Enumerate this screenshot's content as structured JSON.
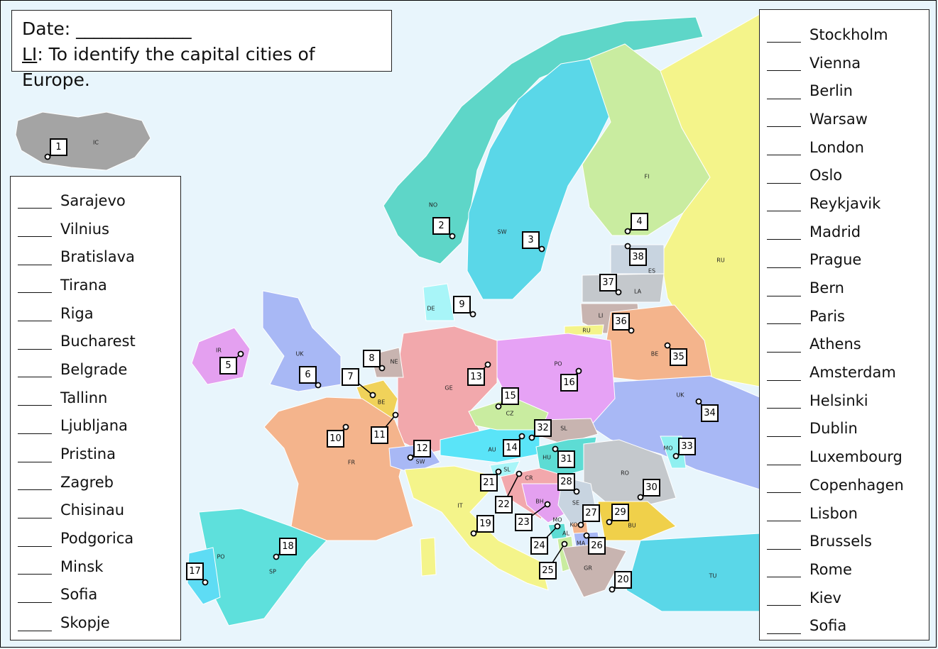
{
  "header": {
    "date_label": "Date: _____________",
    "li_label": "LI",
    "li_text": ": To identify the capital cities of Europe."
  },
  "left_list": [
    "Sarajevo",
    "Vilnius",
    "Bratislava",
    "Tirana",
    "Riga",
    "Bucharest",
    "Belgrade",
    "Tallinn",
    "Ljubljana",
    "Pristina",
    "Zagreb",
    "Chisinau",
    "Podgorica",
    "Minsk",
    "Sofia",
    "Skopje"
  ],
  "right_list": [
    "Stockholm",
    "Vienna",
    "Berlin",
    "Warsaw",
    "London",
    "Oslo",
    "Reykjavik",
    "Madrid",
    "Prague",
    "Bern",
    "Paris",
    "Athens",
    "Amsterdam",
    "Helsinki",
    "Dublin",
    "Luxembourg",
    "Copenhagen",
    "Lisbon",
    "Brussels",
    "Rome",
    "Kiev",
    "Sofia"
  ],
  "map": {
    "markers": [
      "1",
      "2",
      "3",
      "4",
      "5",
      "6",
      "7",
      "8",
      "9",
      "10",
      "11",
      "12",
      "13",
      "14",
      "15",
      "16",
      "17",
      "18",
      "19",
      "20",
      "21",
      "22",
      "23",
      "24",
      "25",
      "26",
      "27",
      "28",
      "29",
      "30",
      "31",
      "32",
      "33",
      "34",
      "35",
      "36",
      "37",
      "38"
    ],
    "country_codes": [
      "IC",
      "NO",
      "SW",
      "FI",
      "RU",
      "ES",
      "LA",
      "LI",
      "RU",
      "BE",
      "IR",
      "UK",
      "NE",
      "DE",
      "GE",
      "PO",
      "BE",
      "CZ",
      "SL",
      "UK",
      "FR",
      "SW",
      "AU",
      "HU",
      "MO",
      "RO",
      "SL",
      "CR",
      "SE",
      "BH",
      "IT",
      "BU",
      "MO",
      "KO",
      "AL",
      "MA",
      "GR",
      "TU",
      "PO",
      "SP"
    ],
    "colors": {
      "sea": "#e8f5fc",
      "teal": "#5ed6c8",
      "cyan": "#5ad7e8",
      "green": "#c9eca0",
      "yellow": "#f4f48a",
      "pink": "#f2a8ac",
      "violet": "#e6a2f5",
      "blue": "#a8b8f5",
      "orange": "#f4b48c",
      "grey": "#c4c8cc"
    }
  }
}
